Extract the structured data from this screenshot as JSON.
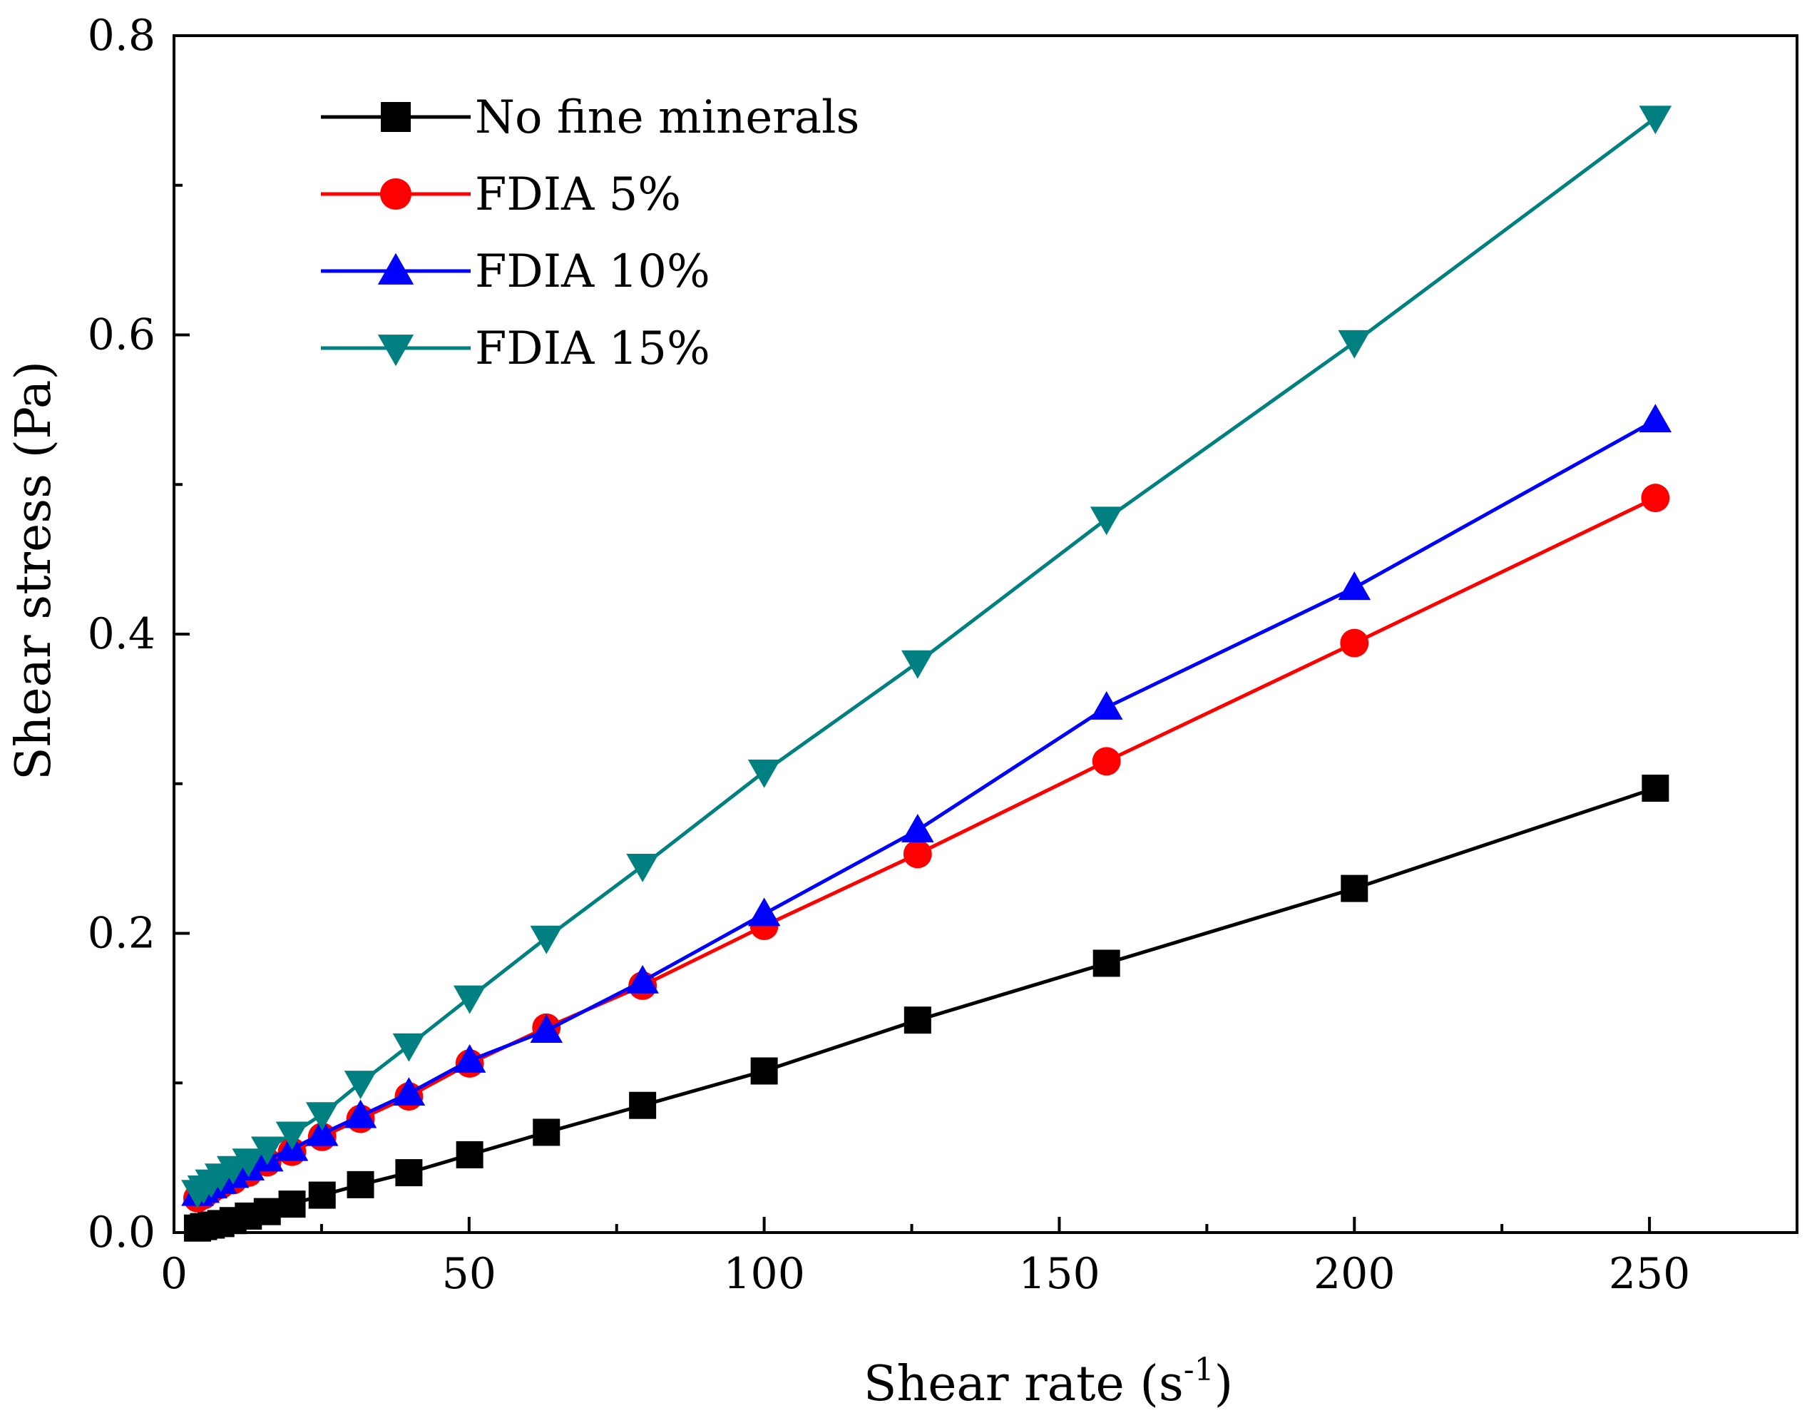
{
  "chart_data": {
    "type": "line",
    "xlabel": "Shear rate (s",
    "xlabel_sup": "-1",
    "xlabel_close": ")",
    "ylabel": "Shear stress (Pa)",
    "xlim": [
      0,
      275
    ],
    "ylim": [
      0,
      0.8
    ],
    "xticks": [
      0,
      50,
      100,
      150,
      200,
      250
    ],
    "xtick_labels": [
      "0",
      "50",
      "100",
      "150",
      "200",
      "250"
    ],
    "yticks": [
      0,
      0.2,
      0.4,
      0.6,
      0.8
    ],
    "ytick_labels": [
      "0.0",
      "0.2",
      "0.4",
      "0.6",
      "0.8"
    ],
    "grid": false,
    "legend_position": "top-left",
    "series": [
      {
        "name": "No fine minerals",
        "color": "#000000",
        "marker": "square",
        "x": [
          3.98,
          5.01,
          6.31,
          7.94,
          10,
          12.6,
          15.8,
          20,
          25.1,
          31.6,
          39.8,
          50.1,
          63.1,
          79.4,
          100,
          126,
          158,
          200,
          251
        ],
        "y": [
          0.003,
          0.004,
          0.005,
          0.006,
          0.008,
          0.011,
          0.014,
          0.019,
          0.025,
          0.032,
          0.04,
          0.052,
          0.067,
          0.085,
          0.108,
          0.142,
          0.18,
          0.23,
          0.297
        ]
      },
      {
        "name": "FDIA 5%",
        "color": "#ff0000",
        "marker": "circle",
        "x": [
          3.98,
          5.01,
          6.31,
          7.94,
          10,
          12.6,
          15.8,
          20,
          25.1,
          31.6,
          39.8,
          50.1,
          63.1,
          79.4,
          100,
          126,
          158,
          200,
          251
        ],
        "y": [
          0.023,
          0.025,
          0.029,
          0.032,
          0.035,
          0.04,
          0.047,
          0.054,
          0.064,
          0.076,
          0.091,
          0.113,
          0.137,
          0.165,
          0.205,
          0.253,
          0.315,
          0.394,
          0.491
        ]
      },
      {
        "name": "FDIA 10%",
        "color": "#0000ff",
        "marker": "triangle-up",
        "x": [
          3.98,
          5.01,
          6.31,
          7.94,
          10,
          12.6,
          15.8,
          20,
          25.1,
          31.6,
          39.8,
          50.1,
          63.1,
          79.4,
          100,
          126,
          158,
          200,
          251
        ],
        "y": [
          0.026,
          0.028,
          0.031,
          0.034,
          0.038,
          0.043,
          0.049,
          0.056,
          0.066,
          0.078,
          0.093,
          0.115,
          0.135,
          0.168,
          0.213,
          0.269,
          0.351,
          0.431,
          0.543
        ]
      },
      {
        "name": "FDIA 15%",
        "color": "#008080",
        "marker": "triangle-down",
        "x": [
          3.98,
          5.01,
          6.31,
          7.94,
          10,
          12.6,
          15.8,
          20,
          25.1,
          31.6,
          39.8,
          50.1,
          63.1,
          79.4,
          100,
          126,
          158,
          200,
          251
        ],
        "y": [
          0.027,
          0.03,
          0.034,
          0.038,
          0.043,
          0.048,
          0.056,
          0.066,
          0.079,
          0.1,
          0.125,
          0.157,
          0.197,
          0.245,
          0.308,
          0.381,
          0.477,
          0.595,
          0.745
        ]
      }
    ]
  }
}
